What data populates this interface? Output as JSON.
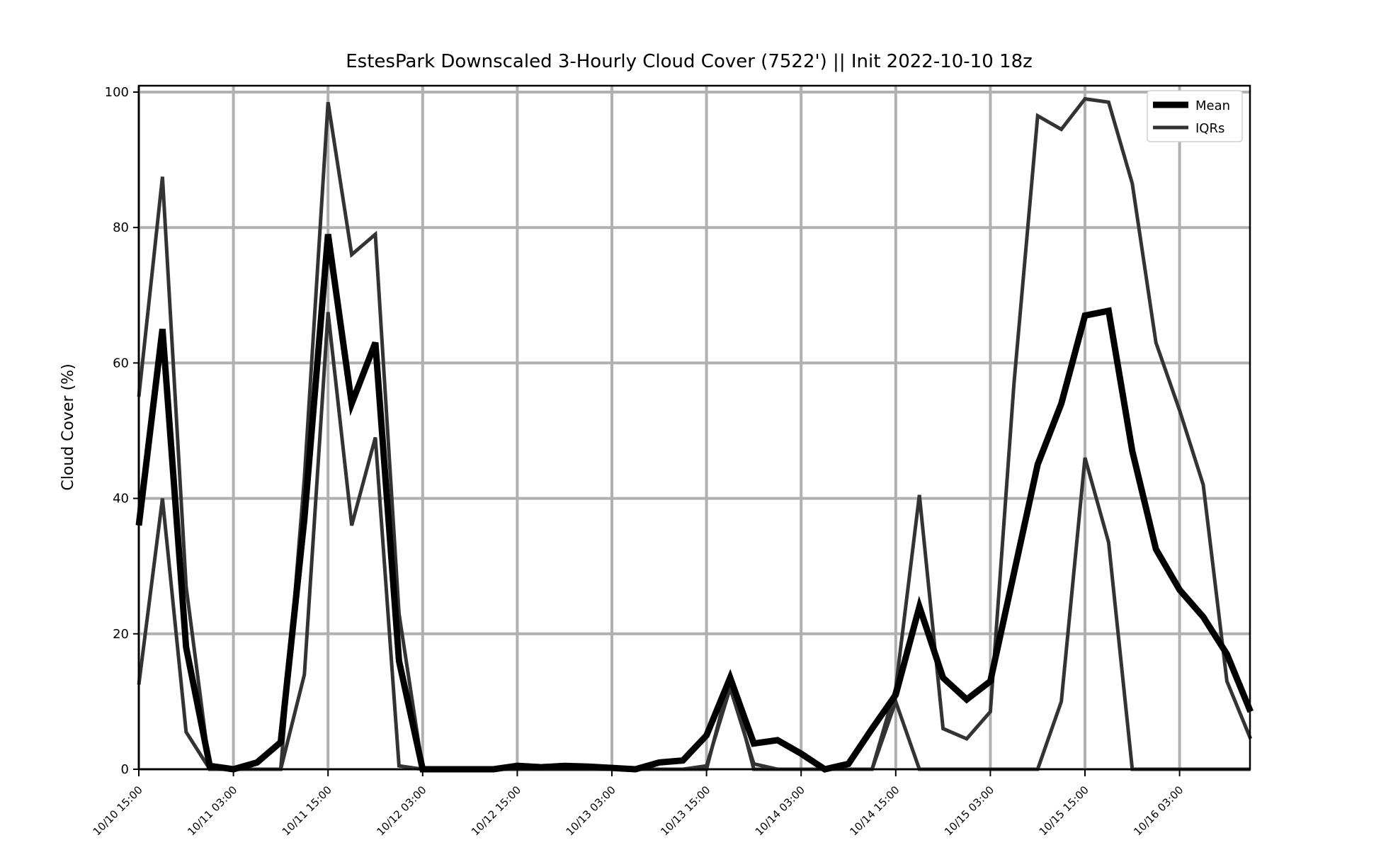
{
  "chart_data": {
    "type": "line",
    "title": "EstesPark Downscaled 3-Hourly Cloud Cover (7522') || Init 2022-10-10 18z",
    "xlabel": "",
    "ylabel": "Cloud Cover (%)",
    "ylim": [
      0,
      100
    ],
    "y_ticks": [
      0,
      20,
      40,
      60,
      80,
      100
    ],
    "x_tick_labels": [
      "10/10 15:00",
      "10/11 03:00",
      "10/11 15:00",
      "10/12 03:00",
      "10/12 15:00",
      "10/13 03:00",
      "10/13 15:00",
      "10/14 03:00",
      "10/14 15:00",
      "10/15 03:00",
      "10/15 15:00",
      "10/16 03:00"
    ],
    "x_start": "10/10 15:00",
    "x_step_hours": 3,
    "grid": true,
    "legend": "top-right",
    "series": [
      {
        "name": "Mean",
        "color": "#000000",
        "values": [
          36,
          65,
          18,
          0.5,
          0,
          1,
          4,
          37,
          79,
          54,
          63,
          16,
          0,
          0,
          0,
          0,
          0.5,
          0.3,
          0.5,
          0.4,
          0.2,
          0,
          1,
          1.3,
          5,
          13.5,
          3.8,
          4.3,
          2.3,
          0,
          0.8,
          6,
          11,
          24,
          13.5,
          10.3,
          13,
          29,
          45,
          54,
          67,
          67.7,
          47,
          32.5,
          26.5,
          22.5,
          17,
          8.5
        ]
      },
      {
        "name": "IQRs",
        "color": "#333333",
        "values": [
          55,
          87.5,
          27,
          0,
          0,
          0,
          0,
          43,
          98.5,
          76,
          79,
          23,
          0,
          0,
          0,
          0,
          0,
          0,
          0,
          0,
          0,
          0,
          0,
          0,
          0,
          13.5,
          0,
          0,
          0,
          0,
          0,
          0,
          12,
          40.5,
          6,
          4.5,
          8.5,
          57,
          96.5,
          94.5,
          99,
          98.5,
          86.5,
          63,
          53,
          42,
          13,
          4.5
        ]
      },
      {
        "name": "",
        "color": "#333333",
        "values": [
          12.5,
          40,
          5.5,
          0,
          0,
          0,
          0,
          14,
          67.5,
          36,
          49,
          0.5,
          0,
          0,
          0,
          0,
          0,
          0,
          0,
          0,
          0,
          0,
          0,
          0,
          0.5,
          12,
          0.8,
          0,
          0,
          0,
          0,
          0,
          10,
          0,
          0,
          0,
          0,
          0,
          0,
          10,
          46,
          33.5,
          0,
          0,
          0,
          0,
          0,
          0
        ]
      }
    ]
  }
}
